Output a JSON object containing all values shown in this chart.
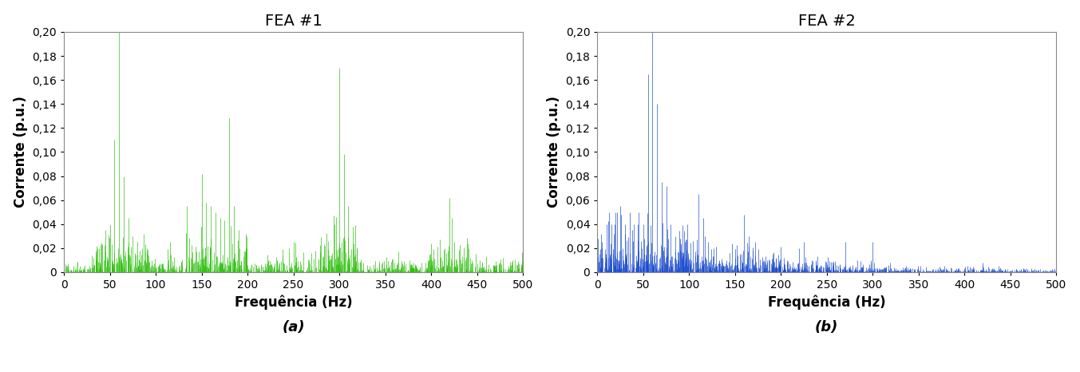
{
  "title1": "FEA #1",
  "title2": "FEA #2",
  "xlabel": "Frequência (Hz)",
  "ylabel": "Corrente (p.u.)",
  "color1": "#22bb00",
  "color2": "#1144cc",
  "xlim": [
    0,
    500
  ],
  "ylim": [
    0,
    0.2
  ],
  "yticks": [
    0,
    0.02,
    0.04,
    0.06,
    0.08,
    0.1,
    0.12,
    0.14,
    0.16,
    0.18,
    0.2
  ],
  "xticks": [
    0,
    50,
    100,
    150,
    200,
    250,
    300,
    350,
    400,
    450,
    500
  ],
  "label_a": "(a)",
  "label_b": "(b)",
  "title_fontsize": 14,
  "label_fontsize": 12,
  "tick_fontsize": 10,
  "seed1": 123,
  "seed2": 456
}
